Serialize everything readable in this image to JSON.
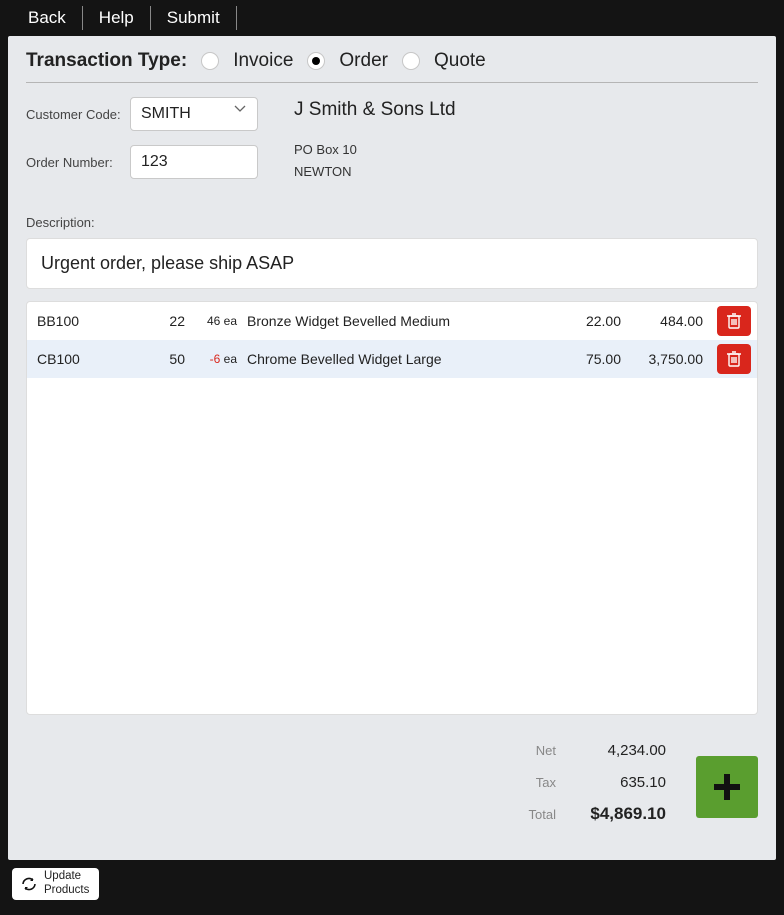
{
  "topbar": {
    "back": "Back",
    "help": "Help",
    "submit": "Submit"
  },
  "transaction": {
    "label": "Transaction Type:",
    "options": [
      "Invoice",
      "Order",
      "Quote"
    ],
    "selected": "Order"
  },
  "form": {
    "customer_code_label": "Customer Code:",
    "customer_code": "SMITH",
    "order_number_label": "Order Number:",
    "order_number": "123",
    "company": "J Smith & Sons Ltd",
    "address_line1": "PO Box 10",
    "address_line2": "NEWTON"
  },
  "description_label": "Description:",
  "description": "Urgent order, please ship ASAP",
  "lines": [
    {
      "code": "BB100",
      "qty": "22",
      "stock": "46",
      "stock_unit": "ea",
      "stock_negative": false,
      "desc": "Bronze Widget Bevelled Medium",
      "price": "22.00",
      "line_total": "484.00",
      "alt": false
    },
    {
      "code": "CB100",
      "qty": "50",
      "stock": "-6",
      "stock_unit": "ea",
      "stock_negative": true,
      "desc": "Chrome Bevelled Widget Large",
      "price": "75.00",
      "line_total": "3,750.00",
      "alt": true
    }
  ],
  "totals": {
    "net_label": "Net",
    "net": "4,234.00",
    "tax_label": "Tax",
    "tax": "635.10",
    "total_label": "Total",
    "total": "$4,869.10"
  },
  "bottombar": {
    "update_line1": "Update",
    "update_line2": "Products"
  },
  "colors": {
    "page_bg": "#e7e9ec",
    "delete_btn": "#d9261c",
    "add_btn": "#5a9e2f",
    "alt_row": "#e9f0f9"
  }
}
